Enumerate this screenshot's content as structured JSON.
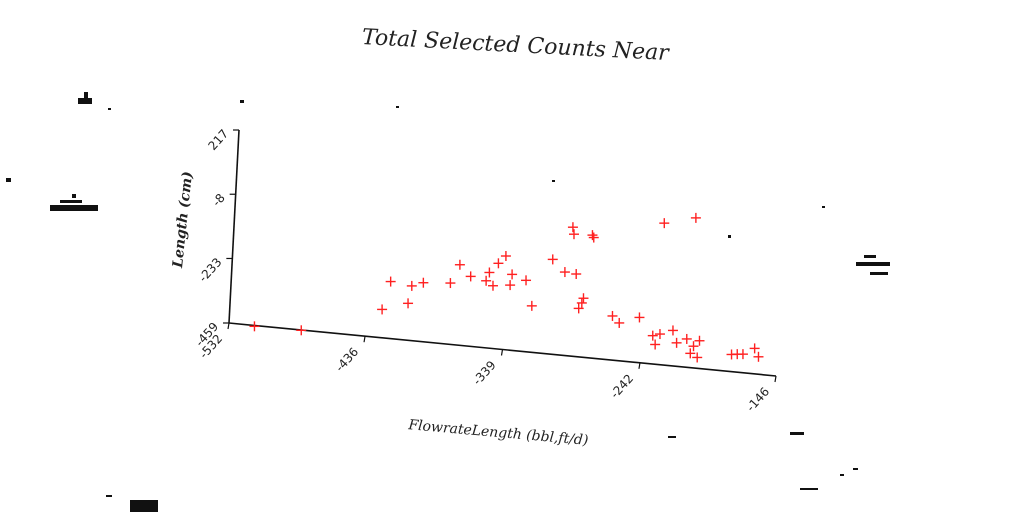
{
  "chart_data": {
    "type": "scatter",
    "title": "Total Selected Counts Near",
    "xlabel": "FlowrateLength (bbl,ft/d)",
    "ylabel": "Length (cm)",
    "xlim": [
      -532,
      -146
    ],
    "ylim": [
      -459,
      217
    ],
    "x_ticks": [
      "-532",
      "-436",
      "-339",
      "-242",
      "-146"
    ],
    "y_ticks": [
      "-459",
      "-233",
      "-8",
      "217"
    ],
    "grid": false,
    "marker": "+",
    "color": "#ff2020",
    "points": [
      {
        "x": -514,
        "y": -462
      },
      {
        "x": -481,
        "y": -460
      },
      {
        "x": -425,
        "y": -360
      },
      {
        "x": -420,
        "y": -260
      },
      {
        "x": -407,
        "y": -330
      },
      {
        "x": -405,
        "y": -268
      },
      {
        "x": -397,
        "y": -253
      },
      {
        "x": -378,
        "y": -245
      },
      {
        "x": -372,
        "y": -178
      },
      {
        "x": -364,
        "y": -215
      },
      {
        "x": -353,
        "y": -225
      },
      {
        "x": -351,
        "y": -195
      },
      {
        "x": -348,
        "y": -240
      },
      {
        "x": -345,
        "y": -160
      },
      {
        "x": -340,
        "y": -132
      },
      {
        "x": -336,
        "y": -232
      },
      {
        "x": -335,
        "y": -194
      },
      {
        "x": -325,
        "y": -210
      },
      {
        "x": -320,
        "y": -297
      },
      {
        "x": -307,
        "y": -128
      },
      {
        "x": -298,
        "y": -168
      },
      {
        "x": -294,
        "y": -9
      },
      {
        "x": -293,
        "y": -33
      },
      {
        "x": -290,
        "y": -171
      },
      {
        "x": -287,
        "y": -290
      },
      {
        "x": -284,
        "y": -253
      },
      {
        "x": -285,
        "y": -270
      },
      {
        "x": -280,
        "y": -30
      },
      {
        "x": -279,
        "y": -38
      },
      {
        "x": -263,
        "y": -305
      },
      {
        "x": -258,
        "y": -327
      },
      {
        "x": -244,
        "y": -301
      },
      {
        "x": -234,
        "y": -360
      },
      {
        "x": -232,
        "y": -390
      },
      {
        "x": -230,
        "y": 36
      },
      {
        "x": -229,
        "y": -352
      },
      {
        "x": -220,
        "y": -335
      },
      {
        "x": -217,
        "y": -377
      },
      {
        "x": -210,
        "y": -360
      },
      {
        "x": -208,
        "y": 65
      },
      {
        "x": -207,
        "y": -409
      },
      {
        "x": -205,
        "y": -383
      },
      {
        "x": -202,
        "y": -421
      },
      {
        "x": -201,
        "y": -362
      },
      {
        "x": -178,
        "y": -399
      },
      {
        "x": -174,
        "y": -396
      },
      {
        "x": -170,
        "y": -394
      },
      {
        "x": -162,
        "y": -370
      },
      {
        "x": -159,
        "y": -398
      }
    ]
  }
}
